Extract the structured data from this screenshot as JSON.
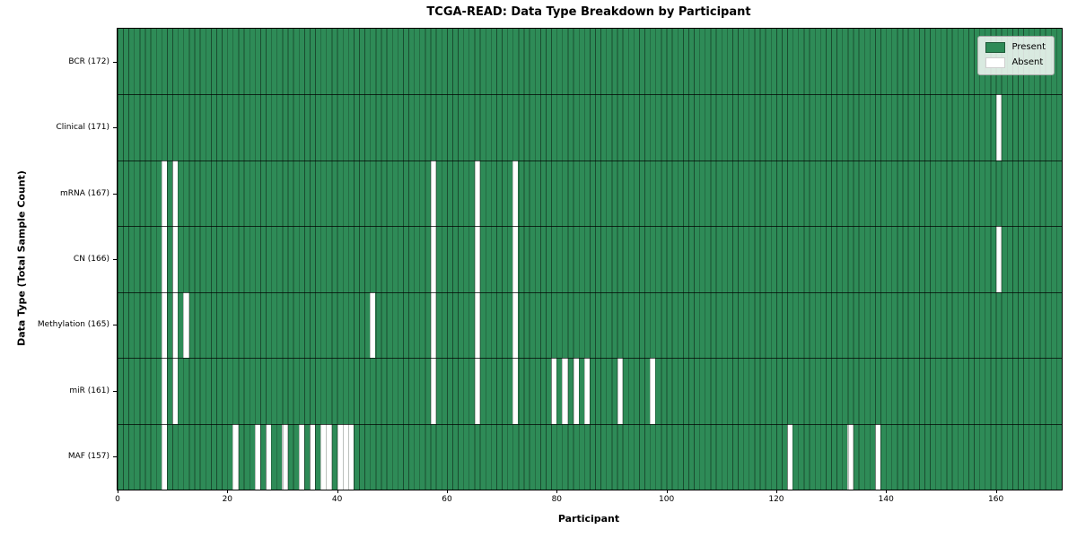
{
  "title": "TCGA-READ: Data Type Breakdown by Participant",
  "chart_data": {
    "type": "heatmap",
    "title": "TCGA-READ: Data Type Breakdown by Participant",
    "xlabel": "Participant",
    "ylabel": "Data Type (Total Sample Count)",
    "n_participants": 172,
    "xlim": [
      0,
      172
    ],
    "x_ticks": [
      0,
      20,
      40,
      60,
      80,
      100,
      120,
      140,
      160
    ],
    "grid": "cell-edges",
    "legend_position": "upper right",
    "colors": {
      "present": "#2e8b57",
      "absent": "#ffffff",
      "cell_edge": "rgba(10,25,15,0.55)",
      "spine": "#000000"
    },
    "rows": [
      {
        "name": "BCR",
        "label": "BCR (172)",
        "total_samples": 172,
        "absent_participants": []
      },
      {
        "name": "Clinical",
        "label": "Clinical (171)",
        "total_samples": 171,
        "absent_participants": [
          160
        ]
      },
      {
        "name": "mRNA",
        "label": "mRNA (167)",
        "total_samples": 167,
        "absent_participants": [
          8,
          10,
          57,
          65,
          72
        ]
      },
      {
        "name": "CN",
        "label": "CN (166)",
        "total_samples": 166,
        "absent_participants": [
          8,
          10,
          57,
          65,
          72,
          160
        ]
      },
      {
        "name": "Methylation",
        "label": "Methylation (165)",
        "total_samples": 165,
        "absent_participants": [
          8,
          10,
          12,
          46,
          57,
          65,
          72
        ]
      },
      {
        "name": "miR",
        "label": "miR (161)",
        "total_samples": 161,
        "absent_participants": [
          8,
          10,
          57,
          65,
          72,
          79,
          81,
          83,
          85,
          91,
          97
        ]
      },
      {
        "name": "MAF",
        "label": "MAF (157)",
        "total_samples": 157,
        "absent_participants": [
          8,
          21,
          25,
          27,
          30,
          33,
          35,
          37,
          38,
          40,
          41,
          42,
          122,
          133,
          138
        ]
      }
    ],
    "legend": [
      {
        "label": "Present",
        "color": "#2e8b57"
      },
      {
        "label": "Absent",
        "color": "#ffffff"
      }
    ]
  }
}
